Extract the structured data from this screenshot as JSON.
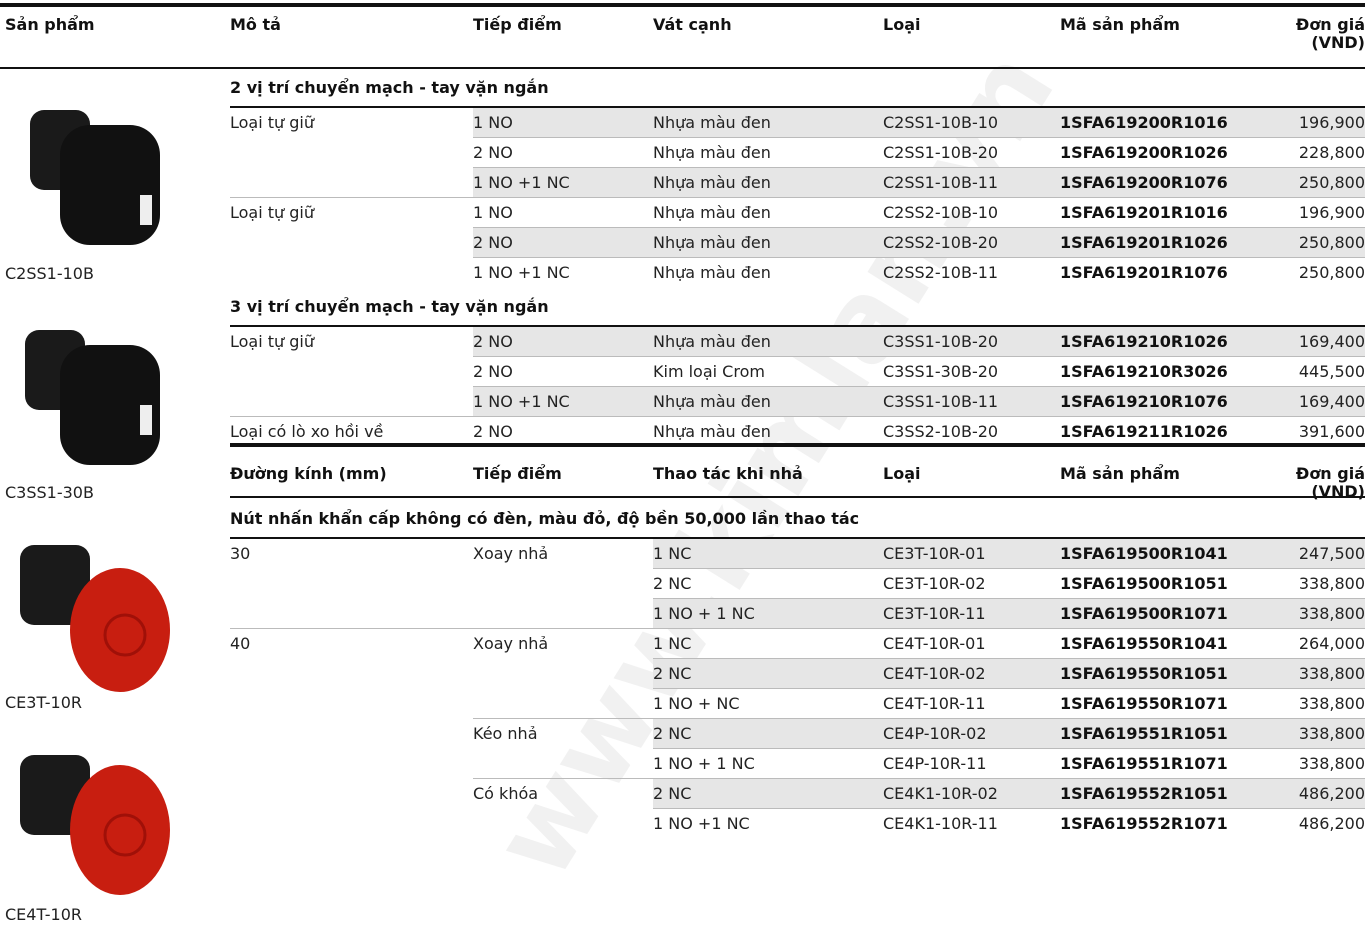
{
  "watermark": "www.kimlan.vn",
  "product_header": "Sản phẩm",
  "products": [
    "C2SS1-10B",
    "C3SS1-30B",
    "CE3T-10R",
    "CE4T-10R"
  ],
  "tables": [
    {
      "header": [
        "Mô tả",
        "Tiếp điểm",
        "Vát cạnh",
        "Loại",
        "Mã sản phẩm",
        "Đơn giá (VND)"
      ],
      "sections": [
        {
          "title": "2 vị trí chuyển mạch - tay vặn ngắn",
          "rows": [
            [
              "Loại tự giữ",
              "1 NO",
              "Nhựa màu đen",
              "C2SS1-10B-10",
              "1SFA619200R1016",
              "196,900"
            ],
            [
              null,
              "2 NO",
              "Nhựa màu đen",
              "C2SS1-10B-20",
              "1SFA619200R1026",
              "228,800"
            ],
            [
              null,
              "1 NO +1 NC",
              "Nhựa màu đen",
              "C2SS1-10B-11",
              "1SFA619200R1076",
              "250,800"
            ],
            [
              "Loại tự giữ",
              "1 NO",
              "Nhựa màu đen",
              "C2SS2-10B-10",
              "1SFA619201R1016",
              "196,900"
            ],
            [
              null,
              "2 NO",
              "Nhựa màu đen",
              "C2SS2-10B-20",
              "1SFA619201R1026",
              "250,800"
            ],
            [
              null,
              "1 NO +1 NC",
              "Nhựa màu đen",
              "C2SS2-10B-11",
              "1SFA619201R1076",
              "250,800"
            ]
          ]
        },
        {
          "title": "3 vị trí chuyển mạch - tay vặn ngắn",
          "rows": [
            [
              "Loại tự giữ",
              "2 NO",
              "Nhựa màu đen",
              "C3SS1-10B-20",
              "1SFA619210R1026",
              "169,400"
            ],
            [
              null,
              "2 NO",
              "Kim loại Crom",
              "C3SS1-30B-20",
              "1SFA619210R3026",
              "445,500"
            ],
            [
              null,
              "1 NO +1 NC",
              "Nhựa màu đen",
              "C3SS1-10B-11",
              "1SFA619210R1076",
              "169,400"
            ],
            [
              "Loại có lò xo hồi về",
              "2 NO",
              "Nhựa màu đen",
              "C3SS2-10B-20",
              "1SFA619211R1026",
              "391,600"
            ]
          ]
        }
      ]
    },
    {
      "header": [
        "Đường kính (mm)",
        "Tiếp điểm",
        "Thao tác khi nhả",
        "Loại",
        "Mã sản phẩm",
        "Đơn giá (VND)"
      ],
      "sections": [
        {
          "title": "Nút nhấn khẩn cấp không có đèn, màu đỏ, độ bền 50,000 lần thao tác",
          "rows": [
            [
              "30",
              "Xoay nhả",
              "1 NC",
              "CE3T-10R-01",
              "1SFA619500R1041",
              "247,500"
            ],
            [
              null,
              null,
              "2 NC",
              "CE3T-10R-02",
              "1SFA619500R1051",
              "338,800"
            ],
            [
              null,
              null,
              "1 NO + 1 NC",
              "CE3T-10R-11",
              "1SFA619500R1071",
              "338,800"
            ],
            [
              "40",
              "Xoay nhả",
              "1 NC",
              "CE4T-10R-01",
              "1SFA619550R1041",
              "264,000"
            ],
            [
              null,
              null,
              "2 NC",
              "CE4T-10R-02",
              "1SFA619550R1051",
              "338,800"
            ],
            [
              null,
              null,
              "1 NO + NC",
              "CE4T-10R-11",
              "1SFA619550R1071",
              "338,800"
            ],
            [
              null,
              "Kéo nhả",
              "2 NC",
              "CE4P-10R-02",
              "1SFA619551R1051",
              "338,800"
            ],
            [
              null,
              null,
              "1 NO + 1 NC",
              "CE4P-10R-11",
              "1SFA619551R1071",
              "338,800"
            ],
            [
              null,
              "Có khóa",
              "2 NC",
              "CE4K1-10R-02",
              "1SFA619552R1051",
              "486,200"
            ],
            [
              null,
              null,
              "1 NO +1 NC",
              "CE4K1-10R-11",
              "1SFA619552R1071",
              "486,200"
            ]
          ]
        }
      ]
    }
  ]
}
